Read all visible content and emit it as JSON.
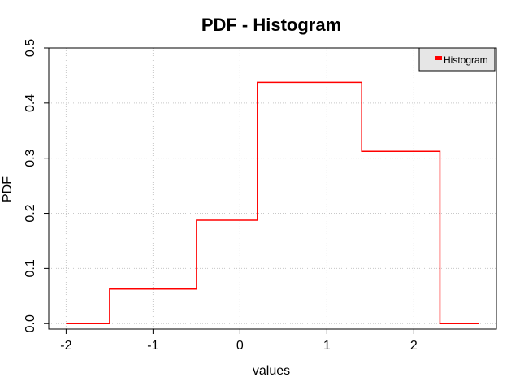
{
  "chart_data": {
    "type": "line",
    "title": "PDF - Histogram",
    "xlabel": "values",
    "ylabel": "PDF",
    "xlim": [
      -2.2,
      2.95
    ],
    "ylim": [
      -0.01,
      0.5
    ],
    "xticks": [
      -2,
      -1,
      0,
      1,
      2
    ],
    "xtick_labels": [
      "-2",
      "-1",
      "0",
      "1",
      "2"
    ],
    "yticks": [
      0.0,
      0.1,
      0.2,
      0.3,
      0.4,
      0.5
    ],
    "ytick_labels": [
      "0.0",
      "0.1",
      "0.2",
      "0.3",
      "0.4",
      "0.5"
    ],
    "grid": true,
    "legend_position": "top-right",
    "series": [
      {
        "name": "Histogram",
        "color": "#ff0000",
        "x": [
          -2.0,
          -1.5,
          -1.5,
          -0.5,
          -0.5,
          0.2,
          0.2,
          1.4,
          1.4,
          2.3,
          2.3,
          2.75
        ],
        "y": [
          0.0,
          0.0,
          0.0625,
          0.0625,
          0.1875,
          0.1875,
          0.4375,
          0.4375,
          0.3125,
          0.3125,
          0.0,
          0.0
        ]
      }
    ]
  }
}
